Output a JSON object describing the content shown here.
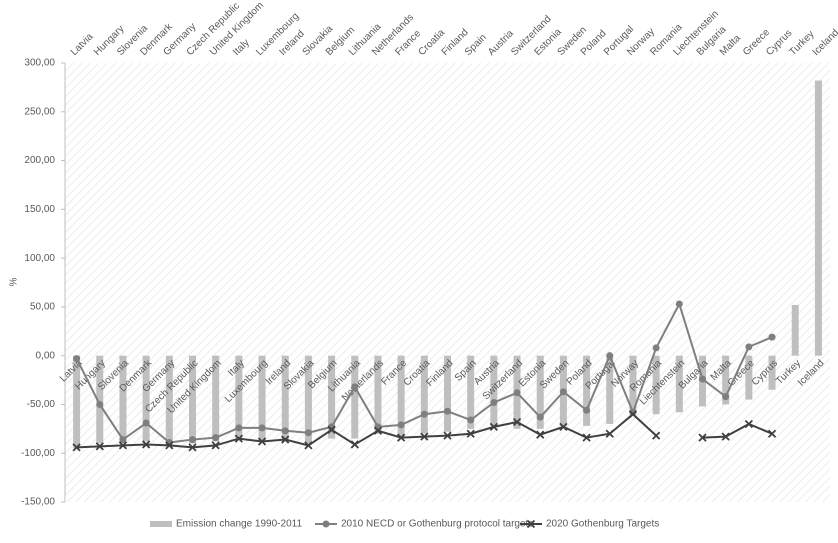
{
  "chart_data": {
    "type": "bar-line",
    "y_label": "%",
    "categories": [
      "Latvia",
      "Hungary",
      "Slovenia",
      "Denmark",
      "Germany",
      "Czech Republic",
      "United Kingdom",
      "Italy",
      "Luxembourg",
      "Ireland",
      "Slovakia",
      "Belgium",
      "Lithuania",
      "Netherlands",
      "France",
      "Croatia",
      "Finland",
      "Spain",
      "Austria",
      "Switzerland",
      "Estonia",
      "Sweden",
      "Poland",
      "Portugal",
      "Norway",
      "Romania",
      "Liechtenstein",
      "Bulgaria",
      "Malta",
      "Greece",
      "Cyprus",
      "Turkey",
      "Iceland"
    ],
    "series": [
      {
        "name": "Emission change 1990-2011",
        "type": "bar",
        "color": "#bfbfbf",
        "values": [
          -95,
          -90,
          -88,
          -88,
          -90,
          -90,
          -88,
          -85,
          -87,
          -88,
          -90,
          -85,
          -85,
          -80,
          -84,
          -80,
          -78,
          -75,
          -72,
          -75,
          -75,
          -72,
          -72,
          -70,
          -60,
          -60,
          -58,
          -52,
          -50,
          -45,
          -35,
          52,
          282
        ]
      },
      {
        "name": "2010 NECD or Gothenburg protocol targets",
        "type": "line",
        "marker": "circle",
        "color": "#7f7f7f",
        "values": [
          -3,
          -50,
          -86,
          -69,
          -89,
          -86,
          -84,
          -74,
          -74,
          -77,
          -79,
          -73,
          -32,
          -73,
          -71,
          -60,
          -57,
          -66,
          -48,
          -38,
          -63,
          -37,
          -56,
          0,
          -58,
          8,
          53,
          -24,
          -42,
          9,
          19,
          null,
          null
        ]
      },
      {
        "name": "2020 Gothenburg Targets",
        "type": "line",
        "marker": "cross",
        "color": "#404040",
        "values": [
          -94,
          -93,
          -92,
          -91,
          -92,
          -94,
          -92,
          -85,
          -88,
          -86,
          -92,
          -76,
          -91,
          -77,
          -84,
          -83,
          -82,
          -80,
          -73,
          -68,
          -81,
          -73,
          -84,
          -80,
          -60,
          -82,
          null,
          -84,
          -83,
          -70,
          -80,
          null,
          null
        ]
      }
    ],
    "ylim": [
      -150,
      300
    ],
    "yticks": [
      {
        "value": -150,
        "label": "-150,00"
      },
      {
        "value": -100,
        "label": "-100,00"
      },
      {
        "value": -50,
        "label": "-50,00"
      },
      {
        "value": 0,
        "label": "0,00"
      },
      {
        "value": 50,
        "label": "50,00"
      },
      {
        "value": 100,
        "label": "100,00"
      },
      {
        "value": 150,
        "label": "150,00"
      },
      {
        "value": 200,
        "label": "200,00"
      },
      {
        "value": 250,
        "label": "250,00"
      },
      {
        "value": 300,
        "label": "300,00"
      }
    ],
    "legend": "bottom"
  }
}
